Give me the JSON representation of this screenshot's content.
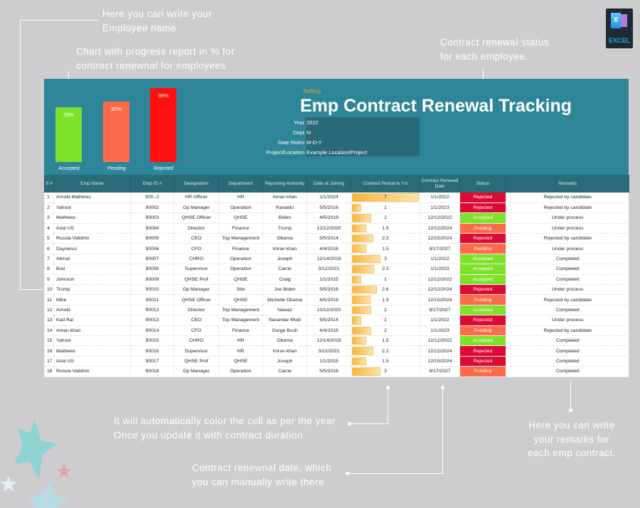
{
  "notes": {
    "employee_name": "Here you can write your\nEmployee name",
    "chart": "Chart with progress report in % for\ncontract renewnal for employees",
    "status": "Contract renewal status\nfor each employee.",
    "color": "It will automatically color the cell as per the year\nOnce you update it with contract duration",
    "renewal": "Contract renewnal date, which\nyou can manually write there",
    "remarks": "Here you can write\nyour remarks for\neach emp contract."
  },
  "logo": {
    "text": "EXCEL",
    "letter": "X"
  },
  "header": {
    "setting": "Setting",
    "title": "Emp Contract Renewal Tracking",
    "info": [
      {
        "label": "Year",
        "value": "2022"
      },
      {
        "label": "Dept",
        "value": "hr"
      },
      {
        "label": "Date Rules",
        "value": "M-D-Y"
      },
      {
        "label": "Project/Location",
        "value": "Example Location/Project"
      }
    ]
  },
  "chart_data": {
    "type": "bar",
    "categories": [
      "Accepted",
      "Pending",
      "Rejected"
    ],
    "values": [
      29,
      32,
      39
    ],
    "labels": [
      "29%",
      "32%",
      "39%"
    ],
    "colors": [
      "#7ee22a",
      "#ff6b4a",
      "#ff1010"
    ],
    "ylim": [
      0,
      39
    ]
  },
  "colors": {
    "Accepted": "#7ee22a",
    "Pending": "#ff6b4a",
    "Rejected": "#dc0a35"
  },
  "table": {
    "columns": [
      "S #",
      "Emp Name",
      "Emp ID #",
      "Designation",
      "Department",
      "Reporting Authority",
      "Date of Joining",
      "Contract Period in Yrs",
      "Contract Renewal Date",
      "Status",
      "Remarks"
    ],
    "rows": [
      [
        "1",
        "Arnold Mathews",
        "900--2",
        "HR Officer",
        "HR",
        "Aman khan",
        "1/1/2024",
        "7",
        "1/1/2022",
        "Rejected",
        "Rejected by candidate"
      ],
      [
        "2",
        "Yahool",
        "90002",
        "Op Manager",
        "Operation",
        "Ranaldo",
        "5/5/2016",
        "1",
        "1/1/2023",
        "Rejected",
        "Rejected by candidate"
      ],
      [
        "3",
        "Mathews",
        "90003",
        "QHSE Officer",
        "QHSE",
        "Biden",
        "4/5/2019",
        "2",
        "12/12/2022",
        "Accepted",
        "Under process"
      ],
      [
        "4",
        "Arial US",
        "90004",
        "Director",
        "Finance",
        "Trump",
        "12/12/2020",
        "1.5",
        "12/12/2024",
        "Pending",
        "Under process"
      ],
      [
        "5",
        "Russia Validmir",
        "90005",
        "CEO",
        "Top Management",
        "Obama",
        "5/5/2014",
        "2.2",
        "12/15/2024",
        "Rejected",
        "Rejected by candidate"
      ],
      [
        "6",
        "Daynerus",
        "90006",
        "CFO",
        "Finance",
        "Imran khan",
        "4/4/2016",
        "1.5",
        "9/17/2027",
        "Pending",
        "Under process"
      ],
      [
        "7",
        "Akmal",
        "90007",
        "CHRO",
        "Operation",
        "Joseph",
        "12/14/2018",
        "3",
        "1/1/2022",
        "Accepted",
        "Completed"
      ],
      [
        "8",
        "Brat",
        "90008",
        "Supervisor",
        "Operation",
        "Carrie",
        "3/12/2021",
        "2.3",
        "1/1/2023",
        "Accepted",
        "Completed"
      ],
      [
        "9",
        "Johnson",
        "90009",
        "QHSE Prof",
        "QHSE",
        "Craig",
        "1/1/2015",
        "1",
        "12/12/2022",
        "Accepted",
        "Completed"
      ],
      [
        "10",
        "Trump",
        "90010",
        "Op Manager",
        "Site",
        "Joe Biden",
        "5/5/2016",
        "2.6",
        "12/12/2024",
        "Rejected",
        "Under process"
      ],
      [
        "11",
        "Mike",
        "90011",
        "QHSE Officer",
        "QHSE",
        "Michelle Obama",
        "4/5/2019",
        "1.9",
        "12/15/2024",
        "Pending",
        "Rejected by candidate"
      ],
      [
        "12",
        "Arnold",
        "90012",
        "Director",
        "Top Management",
        "Nawaz",
        "12/12/2020",
        "2",
        "9/17/2027",
        "Accepted",
        "Completed"
      ],
      [
        "13",
        "Kad Rai",
        "90013",
        "CEO",
        "Top Management",
        "Narandar Modi",
        "5/5/2014",
        "1",
        "1/1/2022",
        "Rejected",
        "Under process"
      ],
      [
        "14",
        "Aman khan",
        "90014",
        "CFO",
        "Finance",
        "Gorge Bush",
        "4/4/2016",
        "2",
        "1/1/2023",
        "Pending",
        "Rejected by candidate"
      ],
      [
        "15",
        "Yahool",
        "90015",
        "CHRO",
        "HR",
        "Obama",
        "12/14/2018",
        "1.5",
        "12/12/2022",
        "Accepted",
        "Completed"
      ],
      [
        "16",
        "Mathews",
        "90016",
        "Supervisor",
        "HR",
        "Imran khan",
        "3/12/2021",
        "2.2",
        "12/12/2024",
        "Rejected",
        "Completed"
      ],
      [
        "17",
        "Arial US",
        "90017",
        "QHSE Prof",
        "QHSE",
        "Joseph",
        "1/1/2015",
        "1.5",
        "12/15/2024",
        "Rejected",
        "Completed"
      ],
      [
        "18",
        "Russia Validmir",
        "90018",
        "Op Manager",
        "Operation",
        "Carrie",
        "5/5/2016",
        "3",
        "9/17/2027",
        "Pending",
        "Completed"
      ]
    ]
  }
}
